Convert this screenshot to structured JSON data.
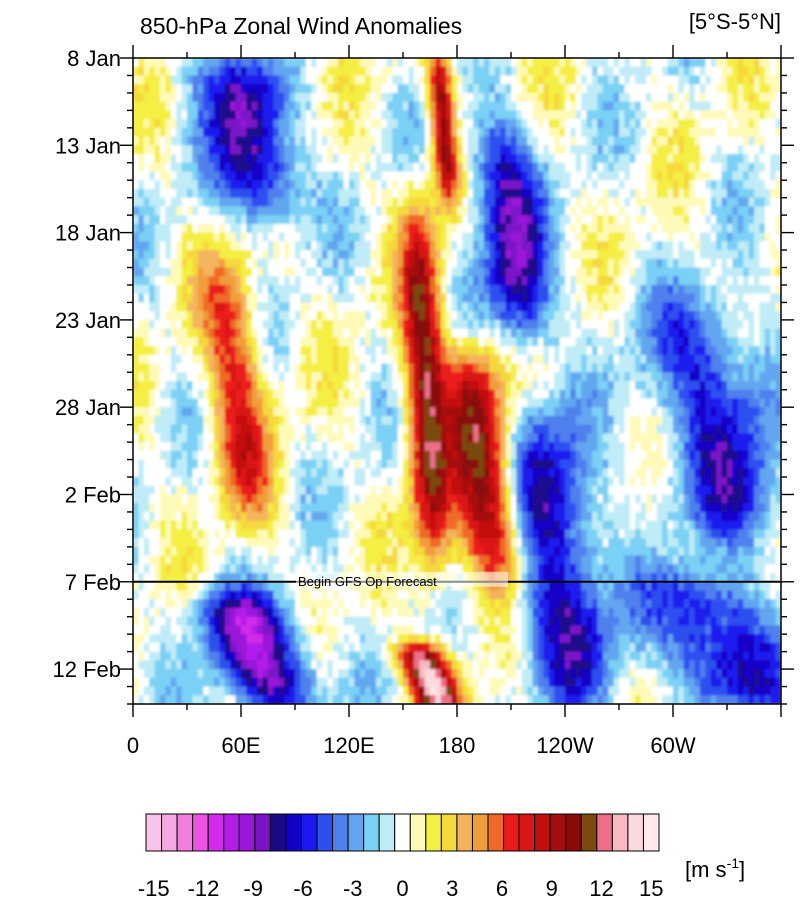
{
  "chart_data": {
    "type": "heatmap",
    "title": "850-hPa Zonal Wind Anomalies",
    "subtitle": "[5°S-5°N]",
    "xlabel": "",
    "ylabel": "",
    "x_ticks": [
      "0",
      "60E",
      "120E",
      "180",
      "120W",
      "60W"
    ],
    "x_range_deg_east": [
      0,
      360
    ],
    "y_ticks": [
      "8 Jan",
      "13 Jan",
      "18 Jan",
      "23 Jan",
      "28 Jan",
      "2 Feb",
      "7 Feb",
      "12 Feb"
    ],
    "y_range": [
      "8 Jan",
      "14 Feb"
    ],
    "y_direction": "time increases downward",
    "forecast_line": {
      "date": "7 Feb",
      "label": "Begin GFS Op Forecast"
    },
    "colorbar": {
      "unit_label": "[m s",
      "unit_exponent": "-1",
      "unit_close": "]",
      "tick_labels": [
        "-15",
        "-12",
        "-9",
        "-6",
        "-3",
        "0",
        "3",
        "6",
        "9",
        "12",
        "15"
      ],
      "tick_values": [
        -15,
        -12,
        -9,
        -6,
        -3,
        0,
        3,
        6,
        9,
        12,
        15
      ],
      "colors": [
        "#f7c3ea",
        "#f5a6e3",
        "#f27fe0",
        "#ee52e4",
        "#d22cea",
        "#b31de8",
        "#9a17d9",
        "#7a12c7",
        "#1a0a8a",
        "#1500c8",
        "#1a1aee",
        "#2e4ff0",
        "#4f80ee",
        "#63a6f0",
        "#7ad0f5",
        "#bfecf7",
        "#ffffff",
        "#fffab8",
        "#f4ef43",
        "#f5d83b",
        "#f4b45d",
        "#f29d3b",
        "#ef6a28",
        "#eb1a1a",
        "#d91717",
        "#c40f0f",
        "#a50d0d",
        "#8a0a0a",
        "#7a4a0f",
        "#ed6e86",
        "#f7b9c2",
        "#fcd9dd",
        "#fde9ec"
      ]
    },
    "features": [
      {
        "type": "westerly",
        "lon_start": 165,
        "lon_end": 180,
        "date_start": "8 Jan",
        "date_end": "16 Jan",
        "peak": 10
      },
      {
        "type": "westerly",
        "lon_start": 150,
        "lon_end": 175,
        "date_start": "17 Jan",
        "date_end": "6 Feb",
        "peak": 10
      },
      {
        "type": "westerly",
        "lon_start": 175,
        "lon_end": 215,
        "date_start": "25 Jan",
        "date_end": "7 Feb",
        "peak": 11
      },
      {
        "type": "westerly",
        "lon_start": 150,
        "lon_end": 180,
        "date_start": "11 Feb",
        "date_end": "14 Feb",
        "peak": 13
      },
      {
        "type": "westerly",
        "lon_start": 40,
        "lon_end": 75,
        "date_start": "20 Jan",
        "date_end": "3 Feb",
        "peak": 7
      },
      {
        "type": "easterly",
        "lon_start": 40,
        "lon_end": 90,
        "date_start": "8 Jan",
        "date_end": "17 Jan",
        "peak": -8
      },
      {
        "type": "easterly",
        "lon_start": 190,
        "lon_end": 230,
        "date_start": "12 Jan",
        "date_end": "24 Jan",
        "peak": -8
      },
      {
        "type": "easterly",
        "lon_start": 205,
        "lon_end": 265,
        "date_start": "28 Jan",
        "date_end": "14 Feb",
        "peak": -7
      },
      {
        "type": "easterly",
        "lon_start": 40,
        "lon_end": 100,
        "date_start": "8 Feb",
        "date_end": "14 Feb",
        "peak": -9
      },
      {
        "type": "easterly",
        "lon_start": 290,
        "lon_end": 360,
        "date_start": "22 Jan",
        "date_end": "5 Feb",
        "peak": -6
      },
      {
        "type": "easterly",
        "lon_start": 290,
        "lon_end": 360,
        "date_start": "7 Feb",
        "date_end": "14 Feb",
        "peak": -7
      }
    ]
  }
}
